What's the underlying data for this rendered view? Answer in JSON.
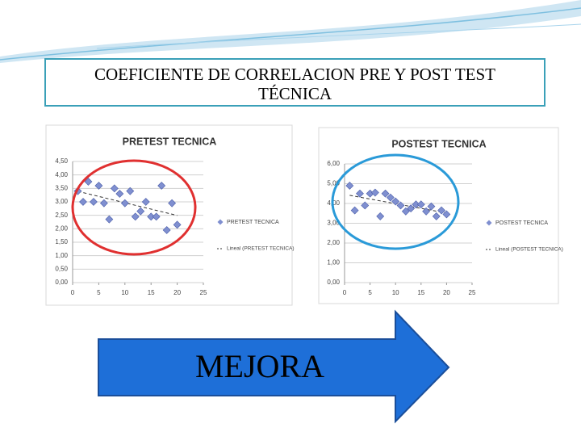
{
  "title": "COEFICIENTE DE CORRELACION  PRE  Y  POST TEST TÉCNICA",
  "arrow_text": "MEJORA",
  "chart_data": [
    {
      "type": "scatter",
      "title": "PRETEST TECNICA",
      "trendline": "Lineal (PRETEST TECNICA)",
      "series": [
        {
          "name": "PRETEST TECNICA",
          "color": "#7f8fd0",
          "x": [
            1,
            2,
            3,
            4,
            5,
            6,
            7,
            8,
            9,
            10,
            11,
            12,
            13,
            14,
            15,
            16,
            17,
            18,
            19,
            20
          ],
          "values": [
            3.4,
            3.0,
            3.75,
            3.0,
            3.6,
            2.95,
            2.35,
            3.5,
            3.3,
            2.95,
            3.4,
            2.45,
            2.65,
            3.0,
            2.45,
            2.45,
            3.6,
            1.95,
            2.95,
            2.15
          ]
        }
      ],
      "xlim": [
        0,
        25
      ],
      "xticks": [
        0,
        5,
        10,
        15,
        20,
        25
      ],
      "ylim": [
        0,
        4.5
      ],
      "yticks": [
        {
          "value": 0,
          "label": "0,00"
        },
        {
          "value": 0.5,
          "label": "0,50"
        },
        {
          "value": 1,
          "label": "1,00"
        },
        {
          "value": 1.5,
          "label": "1,50"
        },
        {
          "value": 2,
          "label": "2,00"
        },
        {
          "value": 2.5,
          "label": "2,50"
        },
        {
          "value": 3,
          "label": "3,00"
        },
        {
          "value": 3.5,
          "label": "3,50"
        },
        {
          "value": 4,
          "label": "4,00"
        },
        {
          "value": 4.5,
          "label": "4,50"
        }
      ],
      "grid": true,
      "circle_color": "#e03030"
    },
    {
      "type": "scatter",
      "title": "POSTEST TECNICA",
      "trendline": "Lineal (POSTEST TECNICA)",
      "series": [
        {
          "name": "POSTEST TECNICA",
          "color": "#7f8fd0",
          "x": [
            1,
            2,
            3,
            4,
            5,
            6,
            7,
            8,
            9,
            10,
            11,
            12,
            13,
            14,
            15,
            16,
            17,
            18,
            19,
            20
          ],
          "values": [
            4.9,
            3.65,
            4.5,
            3.9,
            4.5,
            4.55,
            3.35,
            4.5,
            4.3,
            4.1,
            3.9,
            3.6,
            3.75,
            3.95,
            3.95,
            3.6,
            3.85,
            3.35,
            3.65,
            3.45
          ]
        }
      ],
      "xlim": [
        0,
        25
      ],
      "xticks": [
        0,
        5,
        10,
        15,
        20,
        25
      ],
      "ylim": [
        0,
        6
      ],
      "yticks": [
        {
          "value": 0,
          "label": "0,00"
        },
        {
          "value": 1,
          "label": "1,00"
        },
        {
          "value": 2,
          "label": "2,00"
        },
        {
          "value": 3,
          "label": "3,00"
        },
        {
          "value": 4,
          "label": "4,00"
        },
        {
          "value": 5,
          "label": "5,00"
        },
        {
          "value": 6,
          "label": "6,00"
        }
      ],
      "grid": true,
      "circle_color": "#2a9ad8"
    }
  ]
}
